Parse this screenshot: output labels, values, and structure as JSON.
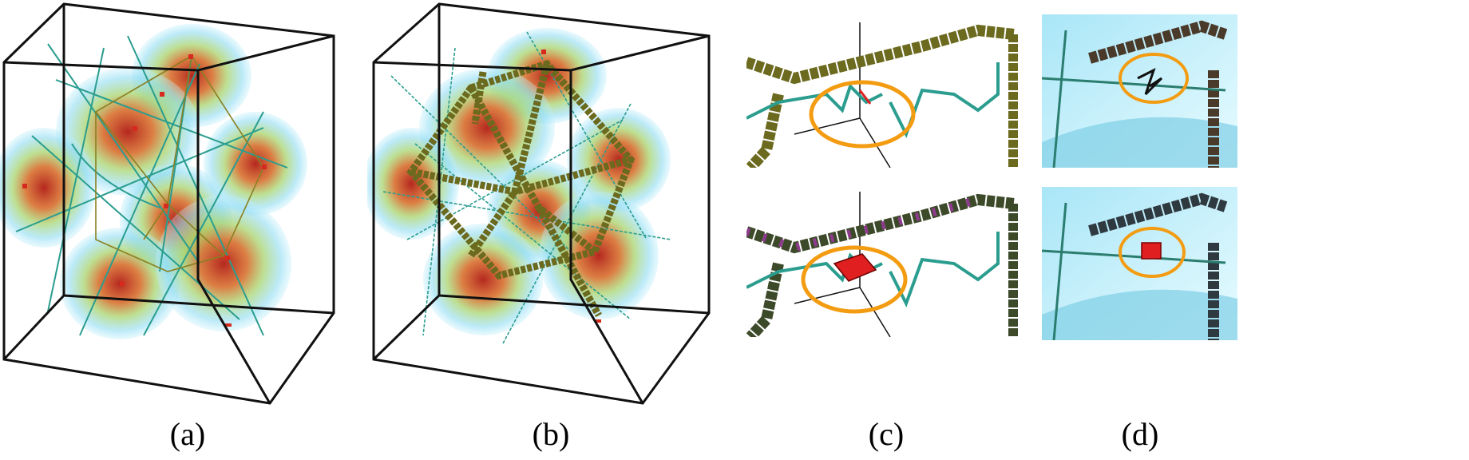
{
  "figure": {
    "captions": {
      "a": "(a)",
      "b": "(b)",
      "c": "(c)",
      "d": "(d)"
    },
    "colors": {
      "box_edge": "#111111",
      "volume_outer": "#7fd8f2",
      "volume_mid": "#9bd37a",
      "volume_core": "#c0392b",
      "skeleton_line": "#2a9d8f",
      "cube_chain": "#6b6a1e",
      "highlight_ellipse": "#f39c12",
      "defect_red": "#e02020"
    }
  }
}
